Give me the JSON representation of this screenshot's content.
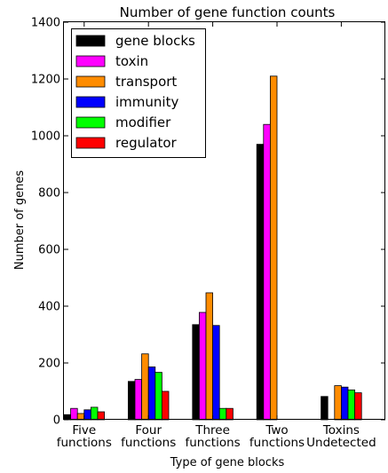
{
  "chart_data": {
    "type": "bar",
    "title": "Number of gene function counts",
    "xlabel": "Type of gene blocks",
    "ylabel": "Number of genes",
    "ylim": [
      0,
      1400
    ],
    "yticks": [
      "0",
      "200",
      "400",
      "600",
      "800",
      "1000",
      "1200",
      "1400"
    ],
    "grid": false,
    "legend_position": "top-left",
    "categories": [
      [
        "Five",
        "functions"
      ],
      [
        "Four",
        "functions"
      ],
      [
        "Three",
        "functions"
      ],
      [
        "Two",
        "functions"
      ],
      [
        "Toxins",
        "Undetected"
      ]
    ],
    "series": [
      {
        "name": "gene blocks",
        "color": "#000000",
        "values": [
          18,
          135,
          335,
          970,
          82
        ]
      },
      {
        "name": "toxin",
        "color": "#ff00ff",
        "values": [
          40,
          142,
          378,
          1040,
          0
        ]
      },
      {
        "name": "transport",
        "color": "#ff8c00",
        "values": [
          22,
          232,
          447,
          1210,
          120
        ]
      },
      {
        "name": "immunity",
        "color": "#0000ff",
        "values": [
          35,
          186,
          332,
          0,
          115
        ]
      },
      {
        "name": "modifier",
        "color": "#00ff00",
        "values": [
          44,
          167,
          40,
          0,
          105
        ]
      },
      {
        "name": "regulator",
        "color": "#ff0000",
        "values": [
          28,
          100,
          40,
          0,
          95
        ]
      }
    ]
  }
}
